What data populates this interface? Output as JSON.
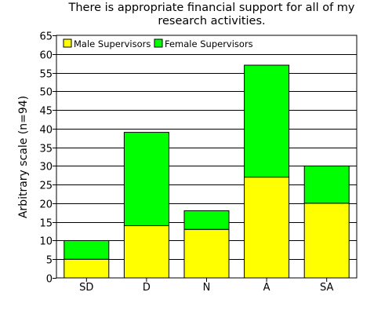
{
  "chart_data": {
    "type": "bar",
    "stacked": true,
    "title_line1": "There is appropriate financial support for all of my",
    "title_line2": "research activities.",
    "xlabel": "",
    "ylabel": "Arbitrary scale (n=94)",
    "categories": [
      "SD",
      "D",
      "N",
      "A",
      "SA"
    ],
    "series": [
      {
        "name": "Male Supervisors",
        "color": "#ffff00",
        "values": [
          5,
          14,
          13,
          27,
          20
        ]
      },
      {
        "name": "Female Supervisors",
        "color": "#00ff00",
        "values": [
          5,
          25,
          5,
          30,
          10
        ]
      }
    ],
    "ylim": [
      0,
      65
    ],
    "ytick_step": 5,
    "grid": "horizontal",
    "legend_position": "top-left"
  }
}
